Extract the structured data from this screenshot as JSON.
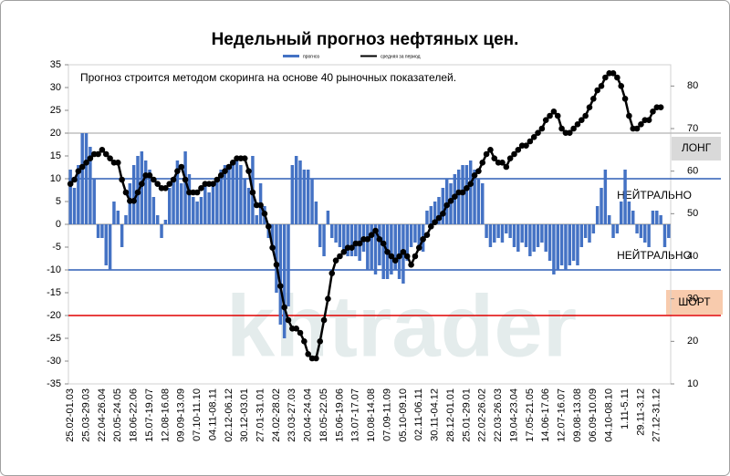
{
  "chart_data": {
    "type": "bar",
    "title": "Недельный прогноз нефтяных цен.",
    "annotation": "Прогноз строится методом скоринга на основе 40 рыночных показателей.",
    "watermark": "khtrader",
    "zones": [
      "ЛОНГ",
      "НЕЙТРАЛЬНО",
      "НЕЙТРАЛЬНО",
      "ШОРТ"
    ],
    "categories": [
      "25.02-01.03",
      null,
      null,
      null,
      "25.03-29.03",
      null,
      null,
      null,
      "22.04-26.04",
      null,
      null,
      null,
      "20.05-24.05",
      null,
      null,
      null,
      "18.06-22.06",
      null,
      null,
      null,
      "15.07-19.07",
      null,
      null,
      null,
      "12.08-16.08",
      null,
      null,
      null,
      "09.09-13.09",
      null,
      null,
      null,
      "07.10-11.10",
      null,
      null,
      null,
      "04.11-08.11",
      null,
      null,
      null,
      "02.12-06.12",
      null,
      null,
      null,
      "30.12-03.01",
      null,
      null,
      null,
      "27.01-31.01",
      null,
      null,
      null,
      "24.02-28.02",
      null,
      null,
      null,
      "23.03-27.03",
      null,
      null,
      null,
      "20.04-24.04",
      null,
      null,
      null,
      "18.05-22.05",
      null,
      null,
      null,
      "15.06-19.06",
      null,
      null,
      null,
      "13.07-17.07",
      null,
      null,
      null,
      "10.08-14.08",
      null,
      null,
      null,
      "07.09-11.09",
      null,
      null,
      null,
      "05.10-09.10",
      null,
      null,
      null,
      "02.11-06.11",
      null,
      null,
      null,
      "30.11-04.12",
      null,
      null,
      null,
      "28.12-01.01",
      null,
      null,
      null,
      "25.01-29.01",
      null,
      null,
      null,
      "22.02-26.02",
      null,
      null,
      null,
      "22.03-26.03",
      null,
      null,
      null,
      "19.04-23.04",
      null,
      null,
      null,
      "17.05-21.05",
      null,
      null,
      null,
      "14.06-17.06",
      null,
      null,
      null,
      "12.07-16.07",
      null,
      null,
      null,
      "09.08-13.08",
      null,
      null,
      null,
      "06.09-10.09",
      null,
      null,
      null,
      "04.10-08.10",
      null,
      null,
      null,
      "1.11-5.11",
      null,
      null,
      null,
      "29.11-3.12",
      null,
      null,
      null,
      "27.12-31.12",
      null,
      null,
      null
    ],
    "series": [
      {
        "name": "прогноз",
        "color": "#4472c4",
        "axis": "y",
        "values": [
          12,
          8,
          13,
          20,
          20,
          17,
          10,
          -3,
          -3,
          -9,
          -10,
          5,
          3,
          -5,
          2,
          9,
          13,
          15,
          16,
          14,
          12,
          6,
          2,
          -3,
          1,
          8,
          10,
          14,
          9,
          16,
          11,
          6,
          5,
          6,
          9,
          7,
          9,
          10,
          12,
          13,
          12,
          14,
          15,
          13,
          10,
          8,
          15,
          2,
          9,
          4,
          -3,
          -5,
          -15,
          -22,
          -25,
          -18,
          13,
          15,
          14,
          12,
          12,
          10,
          5,
          -5,
          -7,
          3,
          -3,
          -4,
          -5,
          -6,
          -7,
          -7,
          -7,
          -8,
          -6,
          -10,
          -10,
          -11,
          -9,
          -12,
          -12,
          -11,
          -10,
          -12,
          -13,
          -8,
          -5,
          -4,
          -5,
          -6,
          3,
          4,
          5,
          6,
          8,
          10,
          9,
          11,
          12,
          13,
          13,
          14,
          12,
          10,
          9,
          -3,
          -5,
          -4,
          -3,
          -4,
          -2,
          -3,
          -5,
          -6,
          -4,
          -5,
          -7,
          -6,
          -5,
          -4,
          -6,
          -8,
          -11,
          -10,
          -9,
          -10,
          -9,
          -8,
          -9,
          -5,
          -3,
          -4,
          -2,
          4,
          8,
          12,
          2,
          -3,
          -2,
          5,
          12,
          5,
          3,
          -2,
          -3,
          -4,
          -5,
          3,
          3,
          2,
          -5,
          -3
        ]
      },
      {
        "name": "средняя за период",
        "color": "#000000",
        "axis": "y2",
        "values": [
          57,
          58,
          60,
          61,
          62,
          63,
          64,
          64,
          65,
          64,
          63,
          62,
          62,
          58,
          55,
          53,
          53,
          55,
          57,
          59,
          59,
          58,
          57,
          56,
          56,
          57,
          58,
          60,
          61,
          58,
          55,
          55,
          55,
          56,
          57,
          57,
          57,
          58,
          59,
          60,
          61,
          62,
          63,
          63,
          63,
          60,
          55,
          52,
          52,
          50,
          47,
          42,
          38,
          33,
          28,
          25,
          23,
          23,
          22,
          20,
          17,
          16,
          16,
          20,
          25,
          30,
          36,
          39,
          40,
          41,
          42,
          42,
          43,
          43,
          44,
          44,
          45,
          46,
          44,
          43,
          41,
          40,
          39,
          40,
          41,
          40,
          38,
          40,
          42,
          44,
          45,
          47,
          48,
          49,
          50,
          52,
          53,
          54,
          55,
          55,
          56,
          57,
          59,
          60,
          62,
          64,
          65,
          63,
          62,
          62,
          61,
          63,
          64,
          65,
          66,
          66,
          67,
          68,
          69,
          70,
          72,
          73,
          74,
          73,
          70,
          69,
          69,
          70,
          71,
          72,
          73,
          75,
          77,
          79,
          80,
          82,
          83,
          83,
          82,
          80,
          77,
          73,
          70,
          70,
          71,
          72,
          72,
          74,
          75,
          75,
          null,
          null
        ]
      }
    ],
    "ylim": [
      -35,
      35
    ],
    "yticks": [
      -35,
      -30,
      -25,
      -20,
      -15,
      -10,
      -5,
      0,
      5,
      10,
      15,
      20,
      25,
      30,
      35
    ],
    "y2lim": [
      10,
      85
    ],
    "y2ticks": [
      10,
      20,
      30,
      40,
      50,
      60,
      70,
      80
    ],
    "reference_lines": [
      {
        "value": 20,
        "color": "#bfbfbf"
      },
      {
        "value": 10,
        "color": "#2e5fb5"
      },
      {
        "value": -10,
        "color": "#2e5fb5"
      },
      {
        "value": -20,
        "color": "#e00000"
      }
    ]
  }
}
